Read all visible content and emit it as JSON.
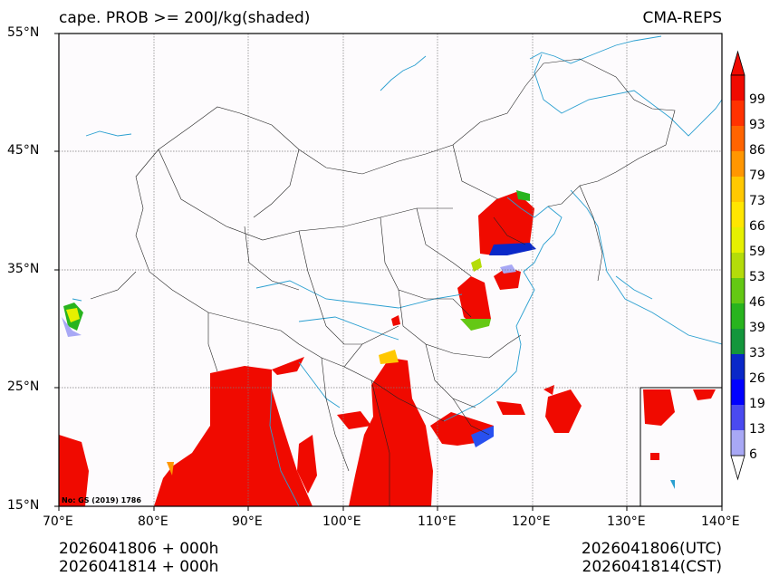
{
  "header": {
    "title": "cape. PROB >= 200J/kg(shaded)",
    "model": "CMA-REPS"
  },
  "axes": {
    "lat_labels": [
      "55°N",
      "45°N",
      "35°N",
      "25°N",
      "15°N"
    ],
    "lon_labels": [
      "70°E",
      "80°E",
      "90°E",
      "100°E",
      "110°E",
      "120°E",
      "130°E",
      "140°E"
    ],
    "lat_range": [
      15,
      55
    ],
    "lon_range": [
      70,
      140
    ],
    "grid": true
  },
  "colorbar": {
    "labels": [
      "6",
      "13",
      "19",
      "26",
      "33",
      "39",
      "46",
      "53",
      "59",
      "66",
      "73",
      "79",
      "86",
      "93",
      "99"
    ],
    "colors": [
      "#a8a8f5",
      "#4a4af0",
      "#0000ff",
      "#0a28c8",
      "#14963c",
      "#28b41e",
      "#64c814",
      "#b4dc0a",
      "#e6f000",
      "#ffe600",
      "#ffc800",
      "#ff9600",
      "#ff6400",
      "#ff3200",
      "#f00a00"
    ],
    "extend_low_color": "#ffffff",
    "extend_high_color": "#f00a00"
  },
  "map_note": "No: GS (2019) 1786",
  "footer": {
    "left_line1": "2026041806  +  000h",
    "left_line2": "2026041814  +  000h",
    "right_line1": "2026041806(UTC)",
    "right_line2": "2026041814(CST)"
  }
}
